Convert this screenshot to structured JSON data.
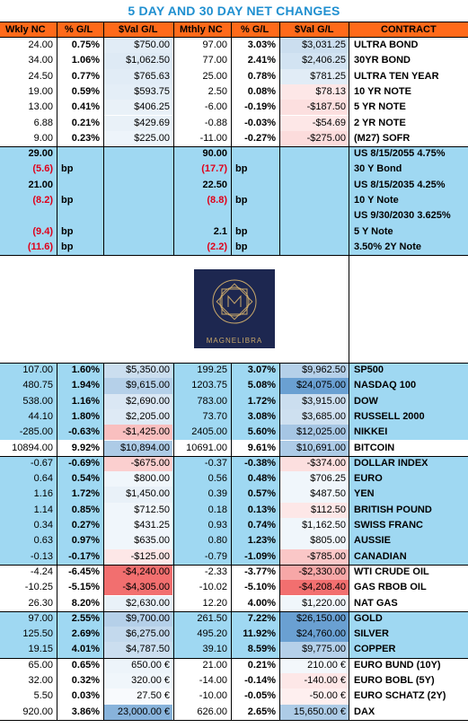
{
  "title": "5 DAY AND 30 DAY NET CHANGES",
  "headers": [
    "Wkly NC",
    "% G/L",
    "$Val G/L",
    "Mthly NC",
    "% G/L",
    "$Val G/L",
    "CONTRACT"
  ],
  "logo_text": "MAGNELIBRA",
  "colors": {
    "header_bg": "#ff6a1a",
    "blue_section": "#9fd8f2",
    "title": "#1f8fd0",
    "red_text": "#e0001a"
  },
  "groups": [
    {
      "name": "interest-rates",
      "bg": "#ffffff",
      "rows": [
        {
          "w": "24.00",
          "wp": "0.75%",
          "wv": "$750.00",
          "m": "97.00",
          "mp": "3.03%",
          "mv": "$3,031.25",
          "c": "ULTRA BOND",
          "wvs": 0.2,
          "mvs": 0.35
        },
        {
          "w": "34.00",
          "wp": "1.06%",
          "wv": "$1,062.50",
          "m": "77.00",
          "mp": "2.41%",
          "mv": "$2,406.25",
          "c": "30YR BOND",
          "wvs": 0.22,
          "mvs": 0.3
        },
        {
          "w": "24.50",
          "wp": "0.77%",
          "wv": "$765.63",
          "m": "25.00",
          "mp": "0.78%",
          "mv": "$781.25",
          "c": "ULTRA TEN YEAR",
          "wvs": 0.2,
          "mvs": 0.2
        },
        {
          "w": "19.00",
          "wp": "0.59%",
          "wv": "$593.75",
          "m": "2.50",
          "mp": "0.08%",
          "mv": "$78.13",
          "c": "10 YR NOTE",
          "wvs": 0.18,
          "mvs": -0.15
        },
        {
          "w": "13.00",
          "wp": "0.41%",
          "wv": "$406.25",
          "m": "-6.00",
          "mp": "-0.19%",
          "mv": "-$187.50",
          "c": "5 YR NOTE",
          "wvs": 0.15,
          "mvs": -0.2
        },
        {
          "w": "6.88",
          "wp": "0.21%",
          "wv": "$429.69",
          "m": "-0.88",
          "mp": "-0.03%",
          "mv": "-$54.69",
          "c": "2 YR NOTE",
          "wvs": 0.15,
          "mvs": -0.15
        },
        {
          "w": "9.00",
          "wp": "0.23%",
          "wv": "$225.00",
          "m": "-11.00",
          "mp": "-0.27%",
          "mv": "-$275.00",
          "c": "(M27) SOFR",
          "wvs": 0.12,
          "mvs": -0.22
        }
      ]
    }
  ],
  "yields": [
    {
      "w": "29.00",
      "wred": false,
      "wunit": "",
      "m": "90.00",
      "mred": false,
      "munit": "",
      "c": "US 8/15/2055 4.75%"
    },
    {
      "w": "(5.6)",
      "wred": true,
      "wunit": "bp",
      "m": "(17.7)",
      "mred": true,
      "munit": "bp",
      "c": "30 Y Bond"
    },
    {
      "w": "21.00",
      "wred": false,
      "wunit": "",
      "m": "22.50",
      "mred": false,
      "munit": "",
      "c": "US 8/15/2035 4.25%"
    },
    {
      "w": "(8.2)",
      "wred": true,
      "wunit": "bp",
      "m": "(8.8)",
      "mred": true,
      "munit": "bp",
      "c": "10 Y Note"
    },
    {
      "w": "",
      "wred": false,
      "wunit": "",
      "m": "",
      "mred": false,
      "munit": "",
      "c": "US 9/30/2030 3.625%"
    },
    {
      "w": "(9.4)",
      "wred": true,
      "wunit": "bp",
      "m": "2.1",
      "mred": false,
      "munit": "bp",
      "c": "5 Y  Note"
    },
    {
      "w": "(11.6)",
      "wred": true,
      "wunit": "bp",
      "m": "(2.2)",
      "mred": true,
      "munit": "bp",
      "c": "3.50% 2Y Note"
    }
  ],
  "markets": [
    {
      "bg": "#9fd8f2",
      "rows": [
        {
          "w": "107.00",
          "wp": "1.60%",
          "wv": "$5,350.00",
          "m": "199.25",
          "mp": "3.07%",
          "mv": "$9,962.50",
          "c": "SP500",
          "wvs": 0.35,
          "mvs": 0.5
        },
        {
          "w": "480.75",
          "wp": "1.94%",
          "wv": "$9,615.00",
          "m": "1203.75",
          "mp": "5.08%",
          "mv": "$24,075.00",
          "c": "NASDAQ 100",
          "wvs": 0.5,
          "mvs": 1.0
        },
        {
          "w": "538.00",
          "wp": "1.16%",
          "wv": "$2,690.00",
          "m": "783.00",
          "mp": "1.72%",
          "mv": "$3,915.00",
          "c": "DOW",
          "wvs": 0.25,
          "mvs": 0.35
        },
        {
          "w": "44.10",
          "wp": "1.80%",
          "wv": "$2,205.00",
          "m": "73.70",
          "mp": "3.08%",
          "mv": "$3,685.00",
          "c": "RUSSELL 2000",
          "wvs": 0.22,
          "mvs": 0.33
        },
        {
          "w": "-285.00",
          "wp": "-0.63%",
          "wv": "-$1,425.00",
          "m": "2405.00",
          "mp": "5.60%",
          "mv": "$12,025.00",
          "c": "NIKKEI",
          "wvs": -0.4,
          "mvs": 0.6
        },
        {
          "w": "10894.00",
          "wp": "9.92%",
          "wv": "$10,894.00",
          "m": "10691.00",
          "mp": "9.61%",
          "mv": "$10,691.00",
          "c": "BITCOIN",
          "wvs": 0.55,
          "mvs": 0.55,
          "bg": "#ffffff"
        }
      ]
    },
    {
      "bg": "#9fd8f2",
      "rows": [
        {
          "w": "-0.67",
          "wp": "-0.69%",
          "wv": "-$675.00",
          "m": "-0.37",
          "mp": "-0.38%",
          "mv": "-$374.00",
          "c": "DOLLAR INDEX",
          "wvs": -0.3,
          "mvs": -0.2
        },
        {
          "w": "0.64",
          "wp": "0.54%",
          "wv": "$800.00",
          "m": "0.56",
          "mp": "0.48%",
          "mv": "$706.25",
          "c": "EURO",
          "wvs": 0.1,
          "mvs": 0.1
        },
        {
          "w": "1.16",
          "wp": "1.72%",
          "wv": "$1,450.00",
          "m": "0.39",
          "mp": "0.57%",
          "mv": "$487.50",
          "c": "YEN",
          "wvs": 0.15,
          "mvs": 0.1
        },
        {
          "w": "1.14",
          "wp": "0.85%",
          "wv": "$712.50",
          "m": "0.18",
          "mp": "0.13%",
          "mv": "$112.50",
          "c": "BRITISH POUND",
          "wvs": 0.1,
          "mvs": -0.15
        },
        {
          "w": "0.34",
          "wp": "0.27%",
          "wv": "$431.25",
          "m": "0.93",
          "mp": "0.74%",
          "mv": "$1,162.50",
          "c": "SWISS FRANC",
          "wvs": 0.1,
          "mvs": 0.1
        },
        {
          "w": "0.63",
          "wp": "0.97%",
          "wv": "$635.00",
          "m": "0.80",
          "mp": "1.23%",
          "mv": "$805.00",
          "c": "AUSSIE",
          "wvs": 0.1,
          "mvs": 0.1
        },
        {
          "w": "-0.13",
          "wp": "-0.17%",
          "wv": "-$125.00",
          "m": "-0.79",
          "mp": "-1.09%",
          "mv": "-$785.00",
          "c": "CANADIAN",
          "wvs": -0.15,
          "mvs": -0.35
        }
      ]
    },
    {
      "bg": "#ffffff",
      "rows": [
        {
          "w": "-4.24",
          "wp": "-6.45%",
          "wv": "-$4,240.00",
          "m": "-2.33",
          "mp": "-3.77%",
          "mv": "-$2,330.00",
          "c": "WTI CRUDE OIL",
          "wvs": -0.9,
          "mvs": -0.55
        },
        {
          "w": "-10.25",
          "wp": "-5.15%",
          "wv": "-$4,305.00",
          "m": "-10.02",
          "mp": "-5.10%",
          "mv": "-$4,208.40",
          "c": "GAS RBOB OIL",
          "wvs": -0.9,
          "mvs": -0.9
        },
        {
          "w": "26.30",
          "wp": "8.20%",
          "wv": "$2,630.00",
          "m": "12.20",
          "mp": "4.00%",
          "mv": "$1,220.00",
          "c": "NAT GAS",
          "wvs": 0.15,
          "mvs": 0.1
        }
      ]
    },
    {
      "bg": "#9fd8f2",
      "rows": [
        {
          "w": "97.00",
          "wp": "2.55%",
          "wv": "$9,700.00",
          "m": "261.50",
          "mp": "7.22%",
          "mv": "$26,150.00",
          "c": "GOLD",
          "wvs": 0.5,
          "mvs": 1.0
        },
        {
          "w": "125.50",
          "wp": "2.69%",
          "wv": "$6,275.00",
          "m": "495.20",
          "mp": "11.92%",
          "mv": "$24,760.00",
          "c": "SILVER",
          "wvs": 0.4,
          "mvs": 1.0
        },
        {
          "w": "19.15",
          "wp": "4.01%",
          "wv": "$4,787.50",
          "m": "39.10",
          "mp": "8.59%",
          "mv": "$9,775.00",
          "c": "COPPER",
          "wvs": 0.35,
          "mvs": 0.5
        }
      ]
    },
    {
      "bg": "#ffffff",
      "rows": [
        {
          "w": "65.00",
          "wp": "0.65%",
          "wv": "650.00 €",
          "m": "21.00",
          "mp": "0.21%",
          "mv": "210.00 €",
          "c": "EURO BUND (10Y)",
          "wvs": 0.12,
          "mvs": 0.08
        },
        {
          "w": "32.00",
          "wp": "0.32%",
          "wv": "320.00 €",
          "m": "-14.00",
          "mp": "-0.14%",
          "mv": "-140.00 €",
          "c": "EURO BOBL (5Y)",
          "wvs": 0.1,
          "mvs": -0.15
        },
        {
          "w": "5.50",
          "wp": "0.03%",
          "wv": "27.50 €",
          "m": "-10.00",
          "mp": "-0.05%",
          "mv": "-50.00 €",
          "c": "EURO SCHATZ (2Y)",
          "wvs": 0.05,
          "mvs": -0.1
        },
        {
          "w": "920.00",
          "wp": "3.86%",
          "wv": "23,000.00 €",
          "m": "626.00",
          "mp": "2.65%",
          "mv": "15,650.00 €",
          "c": "DAX",
          "wvs": 0.8,
          "mvs": 0.55
        }
      ]
    }
  ]
}
